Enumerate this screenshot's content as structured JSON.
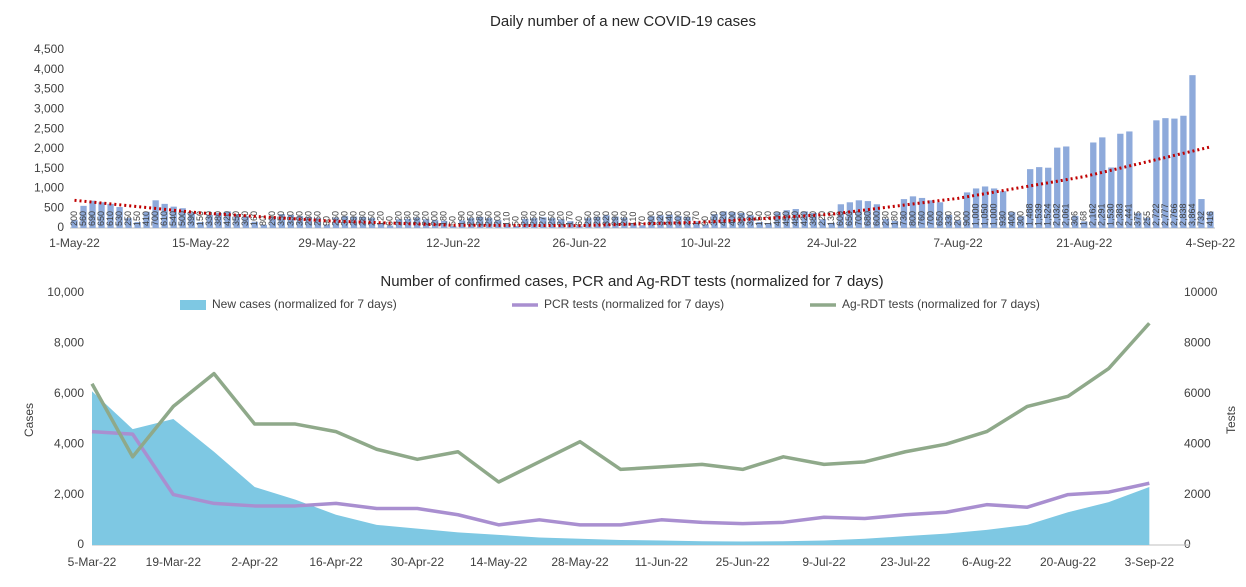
{
  "chart_data": [
    {
      "type": "bar",
      "title": "Daily number of a new COVID-19 cases",
      "color": "#8eaadb",
      "categories": [
        "1-May-22",
        null,
        null,
        null,
        null,
        null,
        null,
        null,
        null,
        null,
        null,
        null,
        null,
        null,
        "15-May-22",
        null,
        null,
        null,
        null,
        null,
        null,
        null,
        null,
        null,
        null,
        null,
        null,
        null,
        "29-May-22",
        null,
        null,
        null,
        null,
        null,
        null,
        null,
        null,
        null,
        null,
        null,
        null,
        null,
        "12-Jun-22",
        null,
        null,
        null,
        null,
        null,
        null,
        null,
        null,
        null,
        null,
        null,
        null,
        null,
        "26-Jun-22",
        null,
        null,
        null,
        null,
        null,
        null,
        null,
        null,
        null,
        null,
        null,
        null,
        null,
        "10-Jul-22",
        null,
        null,
        null,
        null,
        null,
        null,
        null,
        null,
        null,
        null,
        null,
        null,
        null,
        "24-Jul-22",
        null,
        null,
        null,
        null,
        null,
        null,
        null,
        null,
        null,
        null,
        null,
        null,
        null,
        "7-Aug-22",
        null,
        null,
        null,
        null,
        null,
        null,
        null,
        null,
        null,
        null,
        null,
        null,
        null,
        "21-Aug-22",
        null,
        null,
        null,
        null,
        null,
        null,
        null,
        null,
        null,
        null,
        null,
        null,
        null,
        "4-Sep-22"
      ],
      "values": [
        200,
        560,
        690,
        650,
        610,
        530,
        250,
        150,
        410,
        700,
        610,
        540,
        500,
        390,
        150,
        330,
        380,
        420,
        350,
        300,
        160,
        80,
        290,
        350,
        330,
        300,
        280,
        250,
        90,
        260,
        300,
        290,
        280,
        250,
        120,
        60,
        220,
        230,
        260,
        220,
        200,
        180,
        50,
        190,
        250,
        280,
        250,
        200,
        110,
        50,
        230,
        250,
        270,
        250,
        220,
        170,
        60,
        250,
        280,
        320,
        290,
        260,
        110,
        70,
        300,
        320,
        340,
        300,
        280,
        170,
        90,
        350,
        420,
        400,
        380,
        320,
        150,
        120,
        400,
        450,
        480,
        420,
        380,
        220,
        130,
        600,
        650,
        700,
        680,
        600,
        230,
        180,
        730,
        800,
        760,
        700,
        650,
        330,
        200,
        900,
        1000,
        1050,
        1000,
        930,
        400,
        300,
        1488,
        1539,
        1524,
        2032,
        2061,
        306,
        168,
        2162,
        2291,
        1530,
        2383,
        2441,
        375,
        255,
        2722,
        2777,
        2766,
        2838,
        3864,
        732,
        416
      ],
      "value_labels": [
        "200",
        "560",
        "690",
        "650",
        "610",
        "530",
        "250",
        "150",
        "410",
        "700",
        "610",
        "540",
        "500",
        "390",
        "150",
        "330",
        "380",
        "420",
        "350",
        "300",
        "160",
        "80",
        "290",
        "350",
        "330",
        "300",
        "280",
        "250",
        "90",
        "260",
        "300",
        "290",
        "280",
        "250",
        "120",
        "60",
        "220",
        "230",
        "260",
        "220",
        "200",
        "180",
        "50",
        "190",
        "250",
        "280",
        "250",
        "200",
        "110",
        "50",
        "230",
        "250",
        "270",
        "250",
        "220",
        "170",
        "60",
        "250",
        "280",
        "320",
        "290",
        "260",
        "110",
        "70",
        "300",
        "320",
        "340",
        "300",
        "280",
        "170",
        "90",
        "350",
        "420",
        "400",
        "380",
        "320",
        "150",
        "120",
        "400",
        "450",
        "480",
        "420",
        "380",
        "220",
        "130",
        "600",
        "650",
        "700",
        "680",
        "600",
        "230",
        "180",
        "730",
        "800",
        "760",
        "700",
        "650",
        "330",
        "200",
        "900",
        "1,000",
        "1,050",
        "1,000",
        "930",
        "400",
        "300",
        "1,488",
        "1,539",
        "1,524",
        "2,032",
        "2,061",
        "306",
        "168",
        "2,162",
        "2,291",
        "1,530",
        "2,383",
        "2,441",
        "375",
        "255",
        "2,722",
        "2,777",
        "2,766",
        "2,838",
        "3,864",
        "732",
        "416"
      ],
      "trendline": {
        "color": "#c00000",
        "x": [
          "1-May-22",
          "15-May-22",
          "29-May-22",
          "12-Jun-22",
          "26-Jun-22",
          "10-Jul-22",
          "24-Jul-22",
          "7-Aug-22",
          "21-Aug-22",
          "4-Sep-22"
        ],
        "values": [
          700,
          380,
          180,
          70,
          60,
          150,
          350,
          750,
          1300,
          2050
        ]
      },
      "ylim": [
        0,
        4500
      ],
      "yticks": [
        0,
        500,
        {
          "value": 1000,
          "label": "1,000"
        },
        {
          "value": 1500,
          "label": "1,500"
        },
        {
          "value": 2000,
          "label": "2,000"
        },
        {
          "value": 2500,
          "label": "2,500"
        },
        {
          "value": 3000,
          "label": "3,000"
        },
        {
          "value": 3500,
          "label": "3,500"
        },
        {
          "value": 4000,
          "label": "4,000"
        },
        {
          "value": 4500,
          "label": "4,500"
        }
      ]
    },
    {
      "type": "area_line",
      "title": "Number of confirmed cases, PCR and Ag-RDT tests (normalized for 7 days)",
      "ylabel": "Cases",
      "y2label": "Tests",
      "categories": [
        "5-Mar-22",
        null,
        "19-Mar-22",
        null,
        "2-Apr-22",
        null,
        "16-Apr-22",
        null,
        "30-Apr-22",
        null,
        "14-May-22",
        null,
        "28-May-22",
        null,
        "11-Jun-22",
        null,
        "25-Jun-22",
        null,
        "9-Jul-22",
        null,
        "23-Jul-22",
        null,
        "6-Aug-22",
        null,
        "20-Aug-22",
        null,
        "3-Sep-22"
      ],
      "series": [
        {
          "name": "New cases (normalized for 7 days)",
          "type": "area",
          "color": "#7ec8e3",
          "values": [
            6100,
            4600,
            5000,
            3700,
            2300,
            1800,
            1200,
            800,
            650,
            500,
            400,
            300,
            250,
            200,
            180,
            150,
            140,
            150,
            180,
            250,
            350,
            450,
            600,
            800,
            1300,
            1700,
            2300
          ]
        },
        {
          "name": "PCR tests (normalized for 7 days)",
          "type": "line",
          "color": "#a98fd0",
          "values": [
            4500,
            4400,
            2000,
            1650,
            1550,
            1550,
            1650,
            1450,
            1450,
            1200,
            800,
            1000,
            800,
            800,
            1000,
            900,
            850,
            900,
            1100,
            1050,
            1200,
            1300,
            1600,
            1500,
            2000,
            2100,
            2450
          ]
        },
        {
          "name": "Ag-RDT tests (normalized for 7 days)",
          "type": "line",
          "axis": "y2",
          "color": "#8fa98a",
          "values": [
            6400,
            3500,
            5500,
            6800,
            4800,
            4800,
            4500,
            3800,
            3400,
            3700,
            2500,
            3300,
            4100,
            3000,
            3100,
            3200,
            3000,
            3500,
            3200,
            3300,
            3700,
            4000,
            4500,
            5500,
            5900,
            7000,
            8800
          ]
        }
      ],
      "ylim": [
        0,
        10000
      ],
      "yticks": [
        0,
        {
          "value": 2000,
          "label": "2,000"
        },
        {
          "value": 4000,
          "label": "4,000"
        },
        {
          "value": 6000,
          "label": "6,000"
        },
        {
          "value": 8000,
          "label": "8,000"
        },
        {
          "value": 10000,
          "label": "10,000"
        }
      ],
      "y2lim": [
        0,
        10000
      ],
      "y2ticks": [
        0,
        2000,
        4000,
        6000,
        8000,
        10000
      ]
    }
  ]
}
